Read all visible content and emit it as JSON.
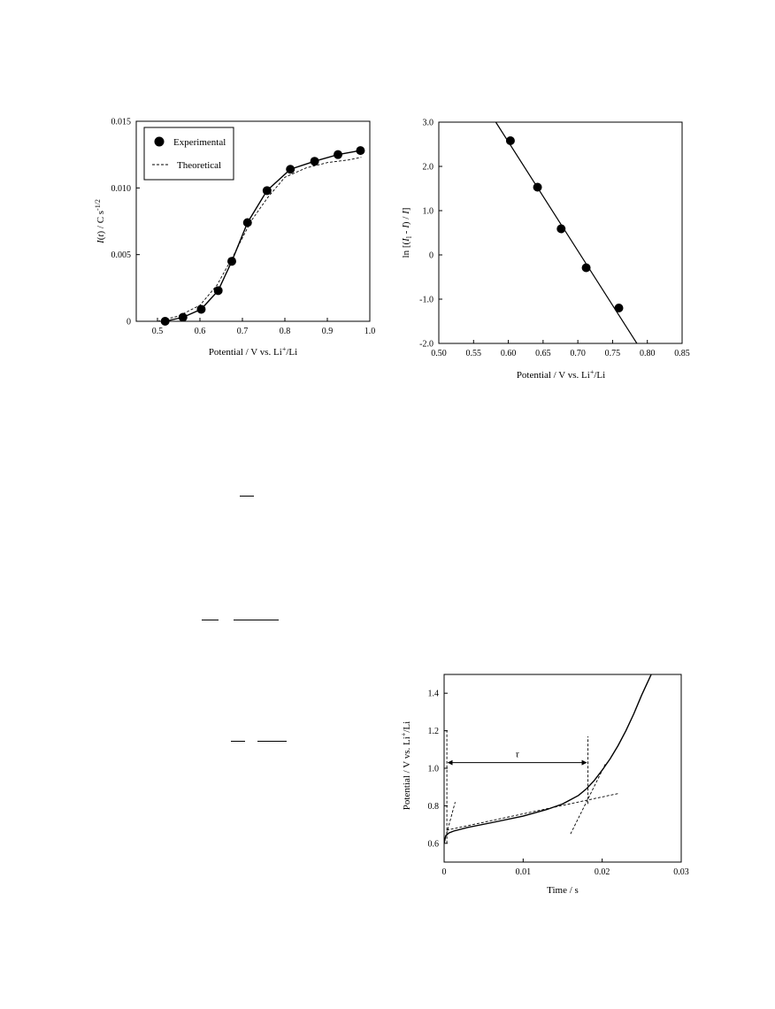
{
  "charts": [
    {
      "type": "line",
      "xlabel": "Potential / V vs. Li+/Li",
      "ylabel": "I(t) / C s-1/2",
      "xlim": [
        0.45,
        1.0
      ],
      "ylim": [
        0,
        0.015
      ],
      "xticks": [
        0.5,
        0.6,
        0.7,
        0.8,
        0.9,
        1.0
      ],
      "xtick_labels": [
        "0.5",
        "0.6",
        "0.7",
        "0.8",
        "0.9",
        "1.0"
      ],
      "yticks": [
        0,
        0.005,
        0.01,
        0.015
      ],
      "ytick_labels": [
        "0",
        "0.005",
        "0.010",
        "0.015"
      ],
      "legend": {
        "position": "top-left",
        "entries": [
          "Experimental",
          "Theoretical"
        ]
      },
      "series": [
        {
          "name": "Experimental",
          "style": "markers+solid",
          "x": [
            0.518,
            0.56,
            0.603,
            0.643,
            0.675,
            0.712,
            0.758,
            0.813,
            0.87,
            0.925,
            0.978
          ],
          "y": [
            0.0,
            0.0003,
            0.0009,
            0.0023,
            0.0045,
            0.0074,
            0.0098,
            0.0114,
            0.012,
            0.0125,
            0.0128
          ]
        },
        {
          "name": "Theoretical",
          "style": "dashed",
          "x": [
            0.5,
            0.55,
            0.6,
            0.64,
            0.68,
            0.72,
            0.76,
            0.8,
            0.85,
            0.9,
            0.95,
            0.98
          ],
          "y": [
            0.0,
            0.0004,
            0.0012,
            0.0027,
            0.005,
            0.0075,
            0.0093,
            0.0108,
            0.0115,
            0.0119,
            0.0121,
            0.0123
          ]
        }
      ]
    },
    {
      "type": "scatter",
      "xlabel": "Potential / V vs. Li+/Li",
      "ylabel": "ln [(Il - I) / I]",
      "xlim": [
        0.5,
        0.85
      ],
      "ylim": [
        -2.0,
        3.0
      ],
      "xticks": [
        0.5,
        0.55,
        0.6,
        0.65,
        0.7,
        0.75,
        0.8,
        0.85
      ],
      "xtick_labels": [
        "0.50",
        "0.55",
        "0.60",
        "0.65",
        "0.70",
        "0.75",
        "0.80",
        "0.85"
      ],
      "yticks": [
        -2,
        -1,
        0,
        1,
        2,
        3
      ],
      "ytick_labels": [
        "-2.0",
        "-1.0",
        "0",
        "1.0",
        "2.0",
        "3.0"
      ],
      "series": [
        {
          "style": "markers",
          "x": [
            0.603,
            0.642,
            0.676,
            0.712,
            0.759
          ],
          "y": [
            2.58,
            1.53,
            0.59,
            -0.29,
            -1.2
          ]
        },
        {
          "style": "fit-line",
          "x": [
            0.582,
            0.785
          ],
          "y": [
            3.0,
            -2.0
          ]
        }
      ]
    },
    {
      "type": "line",
      "xlabel": "Time / s",
      "ylabel": "Potential / V vs. Li+/Li",
      "xlim": [
        0,
        0.03
      ],
      "ylim": [
        0.5,
        1.5
      ],
      "xticks": [
        0,
        0.01,
        0.02,
        0.03
      ],
      "xtick_labels": [
        "0",
        "0.01",
        "0.02",
        "0.03"
      ],
      "yticks": [
        0.6,
        0.8,
        1.0,
        1.2,
        1.4
      ],
      "ytick_labels": [
        "0.6",
        "0.8",
        "1.0",
        "1.2",
        "1.4"
      ],
      "annotation": {
        "text": "τ",
        "from": 0.0005,
        "to": 0.018,
        "y": 1.03
      },
      "series": [
        {
          "style": "solid",
          "x": [
            0.0,
            0.0002,
            0.0006,
            0.0012,
            0.003,
            0.006,
            0.01,
            0.013,
            0.015,
            0.017,
            0.018,
            0.019,
            0.02,
            0.021,
            0.022,
            0.023,
            0.024,
            0.025,
            0.0262
          ],
          "y": [
            0.6,
            0.64,
            0.655,
            0.665,
            0.685,
            0.71,
            0.745,
            0.78,
            0.81,
            0.855,
            0.89,
            0.935,
            0.99,
            1.05,
            1.12,
            1.2,
            1.29,
            1.39,
            1.5
          ]
        },
        {
          "style": "dashed",
          "x": [
            0.0003,
            0.022
          ],
          "y": [
            0.67,
            0.865
          ]
        },
        {
          "style": "dashed",
          "x": [
            0.016,
            0.0205
          ],
          "y": [
            0.65,
            1.03
          ]
        },
        {
          "style": "dashed",
          "x": [
            0.0003,
            0.0014
          ],
          "y": [
            0.65,
            0.82
          ]
        },
        {
          "style": "dashed",
          "x": [
            0.00035,
            0.00035
          ],
          "y": [
            0.6,
            1.2
          ]
        },
        {
          "style": "dashed",
          "x": [
            0.0182,
            0.0182
          ],
          "y": [
            0.81,
            1.17
          ]
        }
      ]
    }
  ]
}
